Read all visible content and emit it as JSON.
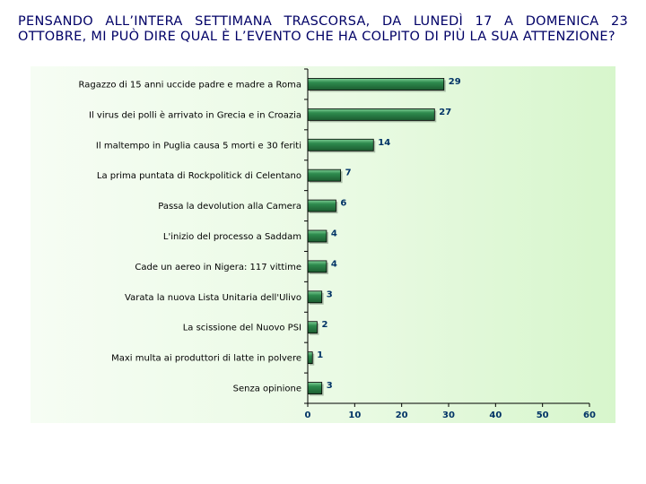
{
  "question": "PENSANDO ALL’INTERA SETTIMANA TRASCORSA, DA LUNEDÌ 17 A DOMENICA 23 OTTOBRE, MI PUÒ DIRE QUAL È L’EVENTO CHE HA COLPITO DI PIÙ LA SUA ATTENZIONE?",
  "colors": {
    "question_text": "#000066",
    "bar_fill": "#2e8b4e",
    "bar_dark": "#1c5c30",
    "bar_highlight": "#7fcf96",
    "value_labels": "#003366",
    "panel_background": "#e9fae3"
  },
  "chart_data": {
    "type": "bar",
    "orientation": "horizontal",
    "categories": [
      "Ragazzo di 15 anni uccide padre e madre a Roma",
      "Il virus dei polli è arrivato in Grecia e in Croazia",
      "Il maltempo in Puglia causa 5 morti e 30 feriti",
      "La prima puntata di Rockpolitick di Celentano",
      "Passa la devolution alla Camera",
      "L'inizio del processo a Saddam",
      "Cade un aereo in Nigera: 117 vittime",
      "Varata la nuova Lista Unitaria dell'Ulivo",
      "La scissione del Nuovo PSI",
      "Maxi multa ai produttori di latte in polvere",
      "Senza opinione"
    ],
    "values": [
      29,
      27,
      14,
      7,
      6,
      4,
      4,
      3,
      2,
      1,
      3
    ],
    "xlim": [
      0,
      60
    ],
    "xticks": [
      0,
      10,
      20,
      30,
      40,
      50,
      60
    ],
    "data_labels": true,
    "grid": false,
    "legend": false
  }
}
